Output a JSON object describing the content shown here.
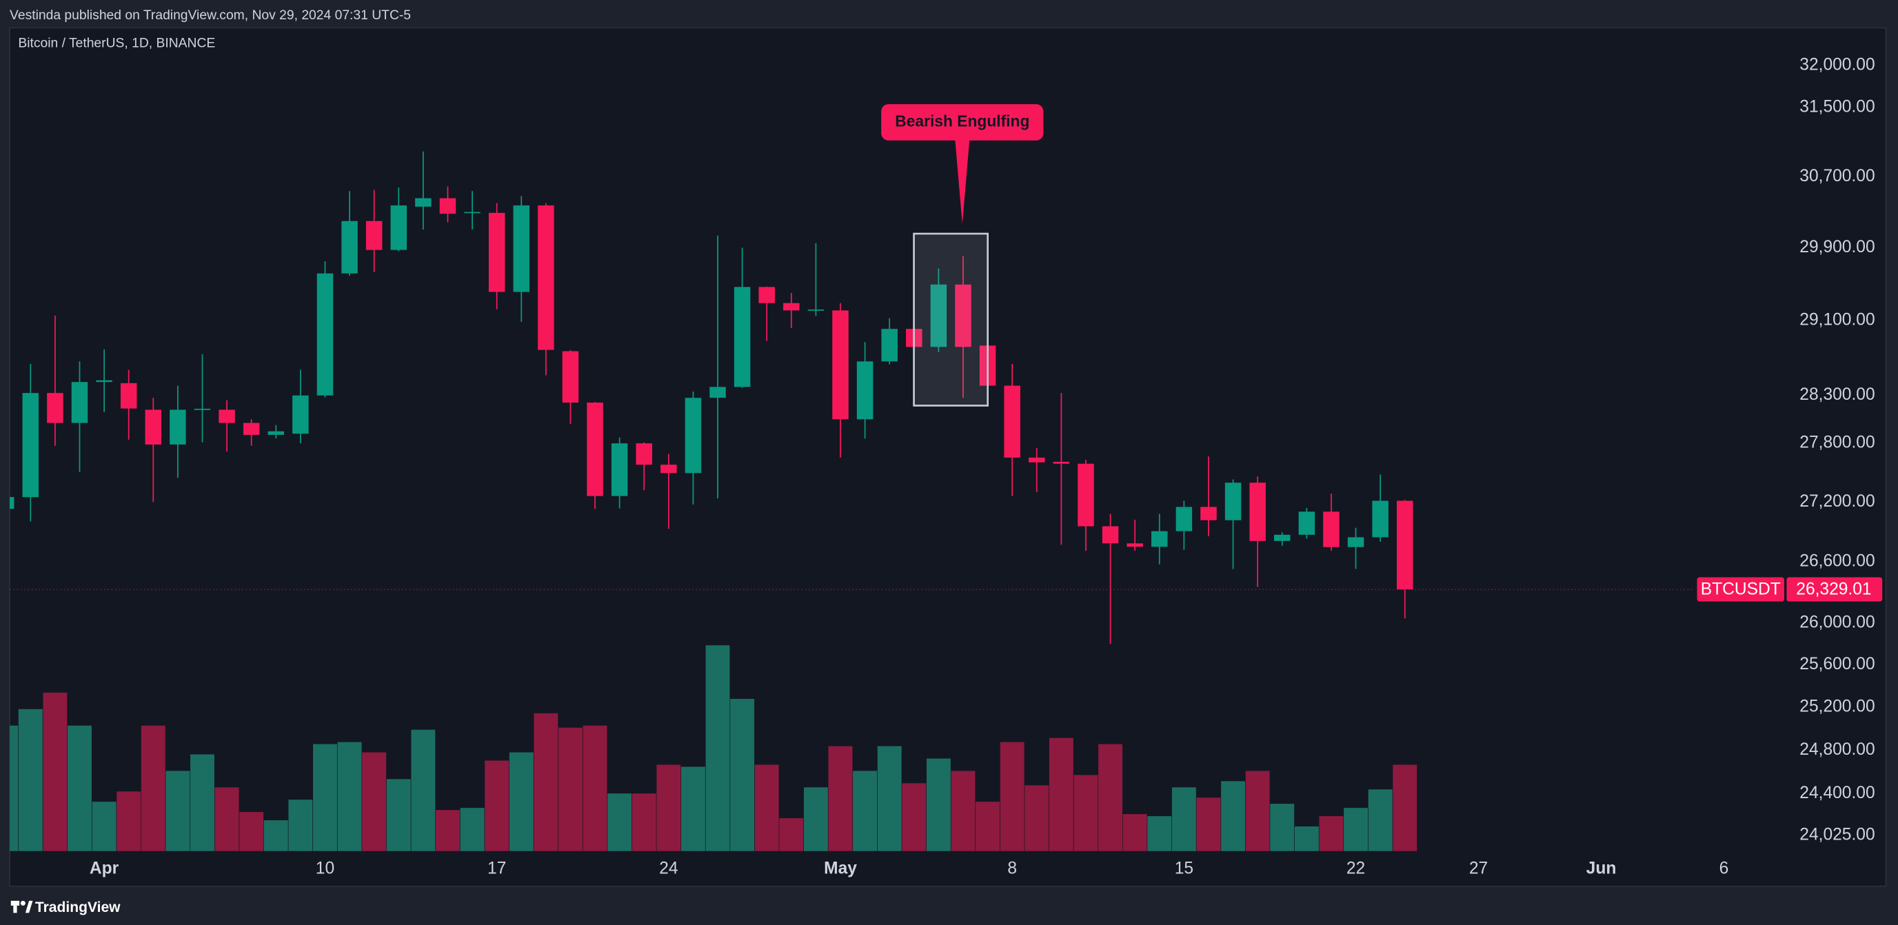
{
  "header": "Vestinda published on TradingView.com, Nov 29, 2024 07:31 UTC-5",
  "footer": "TradingView",
  "chart_data": {
    "type": "candlestick",
    "title": "Bitcoin / TetherUS, 1D, BINANCE",
    "annotation": "Bearish Engulfing",
    "log_scale": true,
    "grid": false,
    "up_color": "#089981",
    "down_color": "#f7185a",
    "volume_up_color": "#1b6f62",
    "volume_down_color": "#8e1a40",
    "ylim": [
      23885,
      32435
    ],
    "yticks": [
      {
        "value": 32000,
        "label": "32,000.00"
      },
      {
        "value": 31500,
        "label": "31,500.00"
      },
      {
        "value": 30700,
        "label": "30,700.00"
      },
      {
        "value": 29900,
        "label": "29,900.00"
      },
      {
        "value": 29100,
        "label": "29,100.00"
      },
      {
        "value": 28300,
        "label": "28,300.00"
      },
      {
        "value": 27800,
        "label": "27,800.00"
      },
      {
        "value": 27200,
        "label": "27,200.00"
      },
      {
        "value": 26600,
        "label": "26,600.00"
      },
      {
        "value": 26000,
        "label": "26,000.00"
      },
      {
        "value": 25600,
        "label": "25,600.00"
      },
      {
        "value": 25200,
        "label": "25,200.00"
      },
      {
        "value": 24800,
        "label": "24,800.00"
      },
      {
        "value": 24400,
        "label": "24,400.00"
      },
      {
        "value": 24025,
        "label": "24,025.00"
      }
    ],
    "xlim": [
      0.15,
      76.6
    ],
    "xticks": [
      {
        "value": 4,
        "label": "Apr"
      },
      {
        "value": 13,
        "label": "10"
      },
      {
        "value": 20,
        "label": "17"
      },
      {
        "value": 27,
        "label": "24"
      },
      {
        "value": 34,
        "label": "May"
      },
      {
        "value": 41,
        "label": "8"
      },
      {
        "value": 48,
        "label": "15"
      },
      {
        "value": 55,
        "label": "22"
      },
      {
        "value": 60,
        "label": "27"
      },
      {
        "value": 65,
        "label": "Jun"
      },
      {
        "value": 70,
        "label": "6"
      }
    ],
    "vlim": [
      0,
      100
    ],
    "last_price": {
      "name": "BTCUSDT",
      "value": 26329.01,
      "label": "26,329.01"
    },
    "open": [
      27130,
      27249,
      28326,
      28012,
      28442,
      28430,
      28150,
      27788,
      28150,
      28150,
      28012,
      27888,
      27900,
      28300,
      29615,
      30198,
      29875,
      30360,
      30456,
      30290,
      30290,
      29412,
      30374,
      28770,
      28225,
      27260,
      27800,
      27580,
      27494,
      28275,
      28390,
      29466,
      29290,
      29210,
      29210,
      28050,
      28661,
      29010,
      28816,
      29493,
      28830,
      28403,
      27653,
      27610,
      27590,
      26955,
      26784,
      26750,
      26906,
      27150,
      27016,
      27396,
      26808,
      26870,
      27102,
      26747,
      26845,
      27212
    ],
    "high": [
      27280,
      28635,
      29154,
      28661,
      28790,
      28571,
      28275,
      28403,
      28738,
      28250,
      28050,
      27990,
      28571,
      29750,
      30537,
      30550,
      30577,
      30990,
      30590,
      30537,
      30400,
      30480,
      30400,
      28780,
      28230,
      27860,
      27810,
      27690,
      28340,
      30035,
      29900,
      29470,
      29400,
      29950,
      29290,
      28868,
      29125,
      29190,
      29670,
      29806,
      29120,
      28635,
      27750,
      28326,
      27630,
      27080,
      27020,
      27080,
      27212,
      27665,
      27430,
      27460,
      26895,
      27140,
      27285,
      26940,
      27480,
      27220
    ],
    "low": [
      27100,
      27004,
      27776,
      27506,
      28125,
      27838,
      27200,
      27445,
      27810,
      27714,
      27776,
      27850,
      27800,
      28280,
      29590,
      29630,
      29860,
      30103,
      30185,
      30103,
      29222,
      29087,
      28513,
      28000,
      27130,
      27135,
      27320,
      26930,
      27175,
      27236,
      28380,
      28880,
      29020,
      29150,
      27653,
      27850,
      28630,
      28800,
      28760,
      28275,
      28380,
      27260,
      27300,
      26770,
      26710,
      25800,
      26710,
      26576,
      26720,
      26855,
      26530,
      26353,
      26760,
      26830,
      26710,
      26530,
      26800,
      26047
    ],
    "close": [
      27250,
      28326,
      28012,
      28442,
      28460,
      28163,
      27788,
      28150,
      28160,
      28012,
      27888,
      27925,
      28300,
      29615,
      30198,
      29875,
      30374,
      30456,
      30280,
      30300,
      29412,
      30374,
      28784,
      28225,
      27260,
      27800,
      27580,
      27494,
      28275,
      28390,
      29466,
      29290,
      29210,
      29220,
      28050,
      28661,
      29010,
      28816,
      29493,
      28816,
      28403,
      27653,
      27604,
      27590,
      26955,
      26784,
      26750,
      26906,
      27150,
      27016,
      27396,
      26808,
      26870,
      27102,
      26747,
      26845,
      27212,
      26329.01
    ],
    "volume": [
      61,
      69,
      77,
      61,
      24,
      29,
      61,
      39,
      47,
      31,
      19,
      15,
      25,
      52,
      53,
      48,
      35,
      59,
      20,
      21,
      44,
      48,
      67,
      60,
      61,
      28,
      28,
      42,
      41,
      100,
      74,
      42,
      16,
      31,
      51,
      39,
      51,
      33,
      45,
      39,
      24,
      53,
      32,
      55,
      37,
      52,
      18,
      17,
      31,
      26,
      34,
      39,
      23,
      12,
      17,
      21,
      30,
      42
    ]
  }
}
